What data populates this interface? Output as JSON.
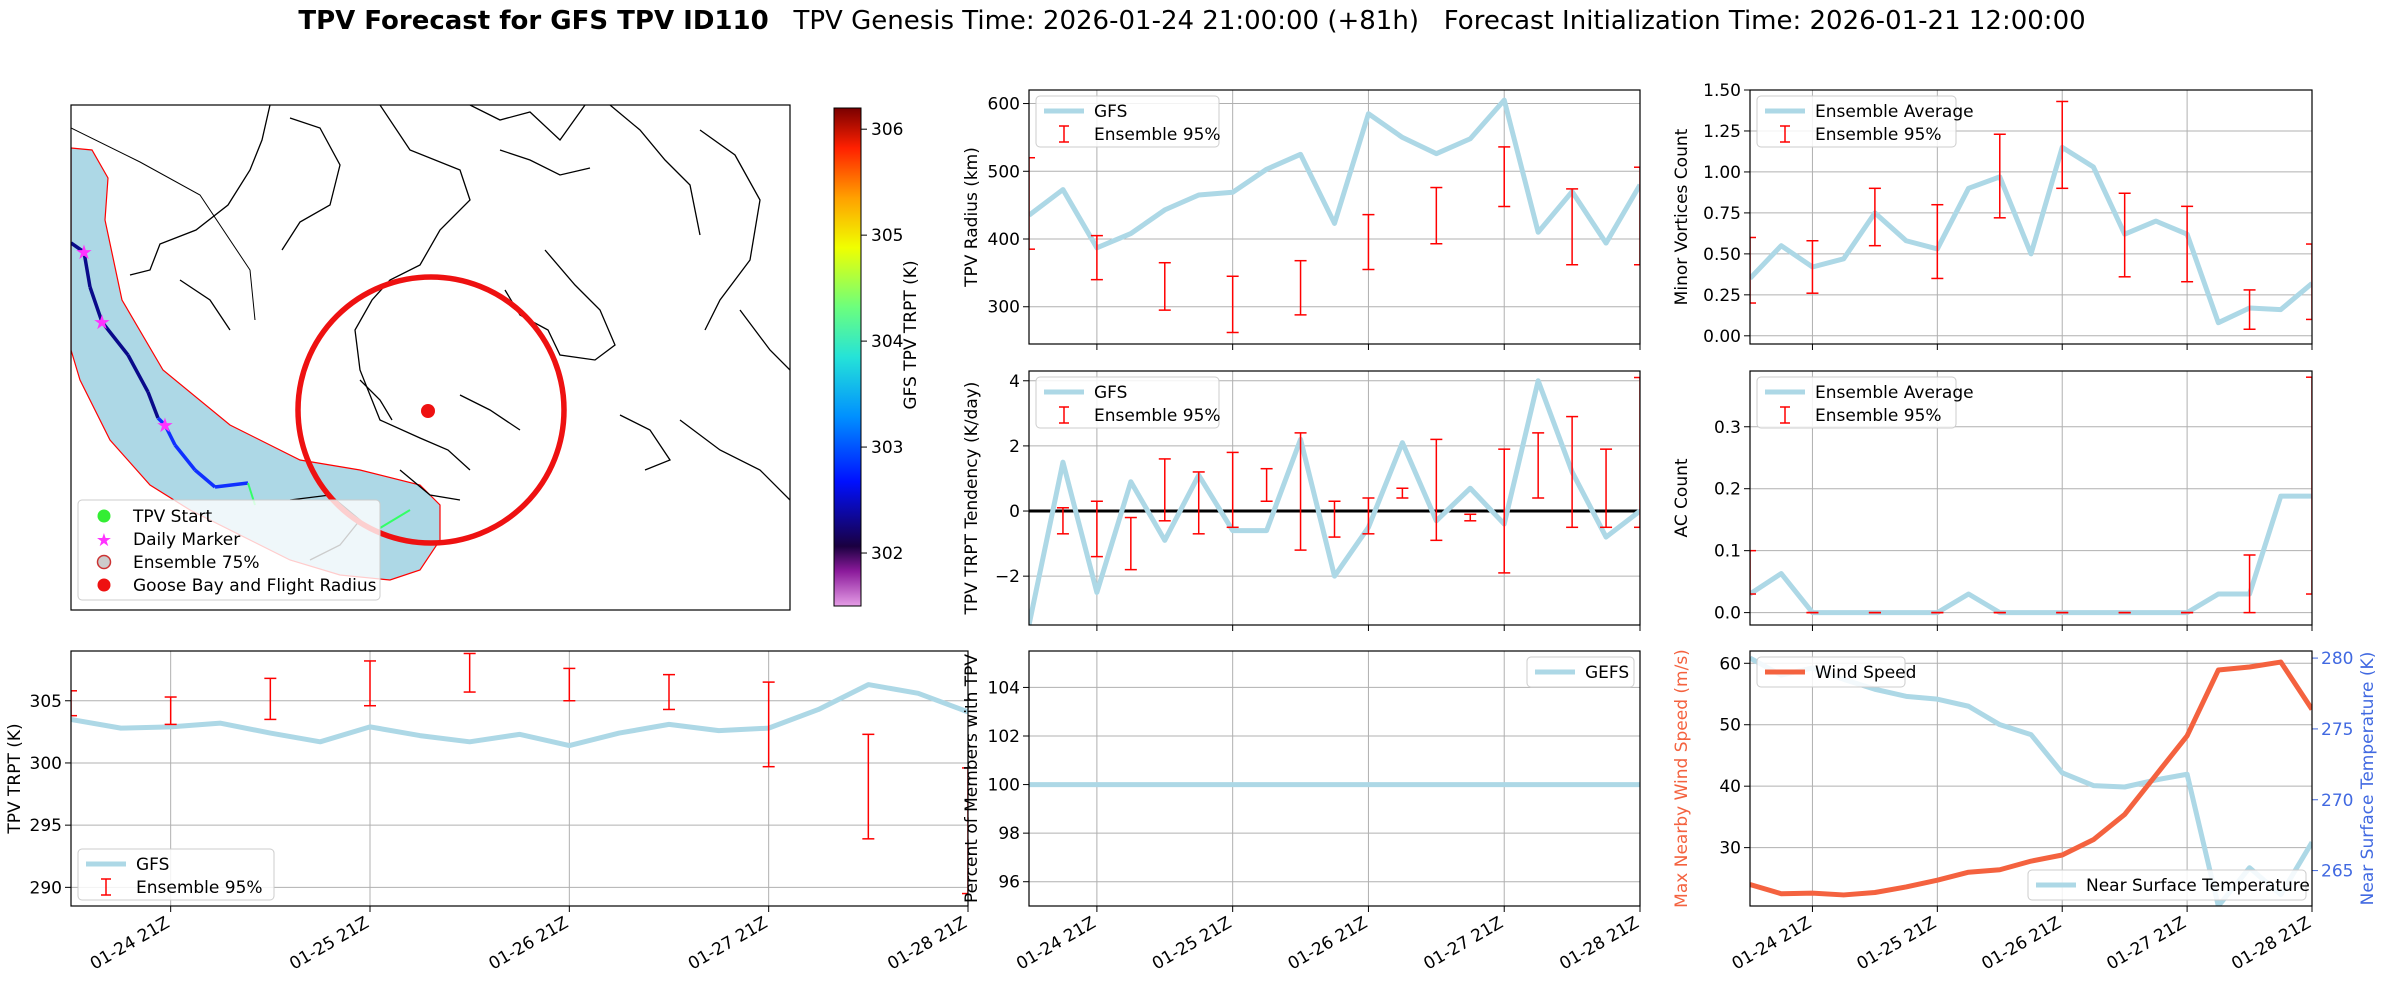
{
  "title": {
    "bold": "TPV Forecast for GFS TPV ID110",
    "genesis": "TPV Genesis Time: 2026-01-24 21:00:00 (+81h)",
    "init": "Forecast Initialization Time: 2026-01-21 12:00:00"
  },
  "colors": {
    "line": "#add8e6",
    "error": "#ff0000",
    "wind": "#f4623f",
    "temp_axis": "#4169e1",
    "grid": "#b0b0b0"
  },
  "x_ticks": [
    "01-24 21Z",
    "01-25 21Z",
    "01-26 21Z",
    "01-27 21Z",
    "01-28 21Z"
  ],
  "map": {
    "colorbar_label": "GFS TPV TRPT (K)",
    "colorbar_ticks": [
      302,
      303,
      304,
      305,
      306
    ],
    "colorbar_range": [
      301.5,
      306.2
    ],
    "legend": [
      "TPV Start",
      "Daily Marker",
      "Ensemble 75%",
      "Goose Bay and Flight Radius"
    ],
    "legend_icons": [
      "green-circle",
      "magenta-star",
      "gray-circle",
      "red-circle"
    ]
  },
  "chart_data": [
    {
      "id": "radius",
      "type": "line",
      "ylabel": "TPV Radius (km)",
      "ylim": [
        245,
        620
      ],
      "yticks": [
        300,
        400,
        500,
        600
      ],
      "legend": [
        "GFS",
        "Ensemble 95%"
      ],
      "line": [
        435,
        473,
        387,
        408,
        443,
        465,
        469,
        503,
        525,
        423,
        585,
        550,
        526,
        548,
        605,
        410,
        470,
        394,
        480
      ],
      "error_x": [
        0,
        2,
        4,
        6,
        8,
        10,
        12,
        14,
        16,
        18
      ],
      "error_lo": [
        385,
        340,
        295,
        262,
        288,
        355,
        393,
        448,
        362,
        362
      ],
      "error_hi": [
        520,
        405,
        365,
        345,
        368,
        436,
        476,
        536,
        474,
        506
      ]
    },
    {
      "id": "vortices",
      "type": "line",
      "ylabel": "Minor Vortices Count",
      "ylim": [
        -0.05,
        1.5
      ],
      "yticks": [
        "0.00",
        "0.25",
        "0.50",
        "0.75",
        "1.00",
        "1.25",
        "1.50"
      ],
      "legend": [
        "Ensemble Average",
        "Ensemble 95%"
      ],
      "line": [
        0.35,
        0.55,
        0.42,
        0.47,
        0.75,
        0.58,
        0.53,
        0.9,
        0.97,
        0.5,
        1.15,
        1.03,
        0.62,
        0.7,
        0.62,
        0.08,
        0.17,
        0.16,
        0.32
      ],
      "error_x": [
        0,
        2,
        4,
        6,
        8,
        10,
        12,
        14,
        16,
        18
      ],
      "error_lo": [
        0.2,
        0.26,
        0.55,
        0.35,
        0.72,
        0.9,
        0.36,
        0.33,
        0.04,
        0.1
      ],
      "error_hi": [
        0.6,
        0.58,
        0.9,
        0.8,
        1.23,
        1.43,
        0.87,
        0.79,
        0.28,
        0.56
      ]
    },
    {
      "id": "tendency",
      "type": "line",
      "ylabel": "TPV TRPT Tendency (K/day)",
      "ylim": [
        -3.5,
        4.3
      ],
      "yticks": [
        "−2",
        "0",
        "2",
        "4"
      ],
      "ytick_vals": [
        -2,
        0,
        2,
        4
      ],
      "zero_line": true,
      "legend": [
        "GFS",
        "Ensemble 95%"
      ],
      "line": [
        -3.5,
        1.5,
        -2.5,
        0.9,
        -0.9,
        1.1,
        -0.6,
        -0.6,
        2.2,
        -2.0,
        -0.5,
        2.1,
        -0.3,
        0.7,
        -0.4,
        4.0,
        1.2,
        -0.8,
        0
      ],
      "error_x": [
        1,
        2,
        3,
        4,
        5,
        6,
        7,
        8,
        9,
        10,
        11,
        12,
        13,
        14,
        15,
        16,
        17,
        18
      ],
      "error_lo": [
        -0.7,
        -1.4,
        -1.8,
        -0.3,
        -0.7,
        -0.5,
        0.3,
        -1.2,
        -0.8,
        -0.7,
        0.4,
        -0.9,
        -0.3,
        -1.9,
        0.4,
        -0.5,
        -0.5,
        -0.5
      ],
      "error_hi": [
        0.1,
        0.3,
        -0.2,
        1.6,
        1.2,
        1.8,
        1.3,
        2.4,
        0.3,
        0.4,
        0.7,
        2.2,
        -0.1,
        1.9,
        2.4,
        2.9,
        1.9,
        4.1
      ]
    },
    {
      "id": "ac",
      "type": "line",
      "ylabel": "AC Count",
      "ylim": [
        -0.02,
        0.39
      ],
      "yticks": [
        "0.0",
        "0.1",
        "0.2",
        "0.3"
      ],
      "ytick_vals": [
        0,
        0.1,
        0.2,
        0.3
      ],
      "legend": [
        "Ensemble Average",
        "Ensemble 95%"
      ],
      "line": [
        0.03,
        0.063,
        0,
        0,
        0,
        0,
        0,
        0.03,
        0,
        0,
        0,
        0,
        0,
        0,
        0,
        0.03,
        0.03,
        0.188,
        0.188
      ],
      "error_x": [
        0,
        2,
        4,
        6,
        8,
        10,
        12,
        14,
        16,
        18
      ],
      "error_lo": [
        0.03,
        0,
        0,
        0,
        0,
        0,
        0,
        0,
        0,
        0.03
      ],
      "error_hi": [
        0.1,
        0,
        0,
        0,
        0,
        0,
        0,
        0,
        0.093,
        0.38
      ]
    },
    {
      "id": "trpt",
      "type": "line",
      "ylabel": "TPV TRPT (K)",
      "ylim": [
        288.5,
        309
      ],
      "yticks": [
        290,
        295,
        300,
        305
      ],
      "legend": [
        "GFS",
        "Ensemble 95%"
      ],
      "line": [
        303.5,
        302.8,
        302.9,
        303.2,
        302.4,
        301.7,
        302.9,
        302.2,
        301.7,
        302.3,
        301.4,
        302.4,
        303.1,
        302.6,
        302.8,
        304.3,
        306.3,
        305.6,
        304.1
      ],
      "error_x": [
        0,
        2,
        4,
        6,
        8,
        10,
        12,
        14,
        16,
        18
      ],
      "error_lo": [
        303.8,
        303.1,
        303.5,
        304.6,
        305.7,
        305.0,
        304.3,
        299.7,
        293.9,
        289.5
      ],
      "error_hi": [
        305.8,
        305.3,
        306.8,
        308.2,
        308.8,
        307.6,
        307.1,
        306.5,
        302.3,
        299.6
      ]
    },
    {
      "id": "percent",
      "type": "line",
      "ylabel": "Percent of Members with TPV",
      "ylim": [
        95,
        105.5
      ],
      "yticks": [
        96,
        98,
        100,
        102,
        104
      ],
      "legend": [
        "GEFS"
      ],
      "line": [
        100,
        100,
        100,
        100,
        100,
        100,
        100,
        100,
        100,
        100,
        100,
        100,
        100,
        100,
        100,
        100,
        100,
        100,
        100
      ]
    },
    {
      "id": "wind_temp",
      "type": "line",
      "ylabel": "Max Nearby Wind Speed (m/s)",
      "ylim": [
        20.5,
        62
      ],
      "yticks": [
        30,
        40,
        50,
        60
      ],
      "y2label": "Near Surface Temperature (K)",
      "y2lim": [
        262.5,
        280.5
      ],
      "y2ticks": [
        265,
        270,
        275,
        280
      ],
      "legend": [
        "Wind Speed",
        "Near Surface Temperature"
      ],
      "wind": [
        24.0,
        22.5,
        22.6,
        22.3,
        22.7,
        23.6,
        24.7,
        26.0,
        26.4,
        27.8,
        28.8,
        31.3,
        35.4,
        41.8,
        48.2,
        58.9,
        59.4,
        60.2,
        52.5
      ],
      "temp": [
        280.0,
        278.8,
        279.3,
        278.5,
        277.8,
        277.3,
        277.1,
        276.6,
        275.3,
        274.6,
        271.9,
        271.0,
        270.9,
        271.4,
        271.8,
        262.5,
        265.2,
        263.3,
        267.0
      ]
    }
  ]
}
